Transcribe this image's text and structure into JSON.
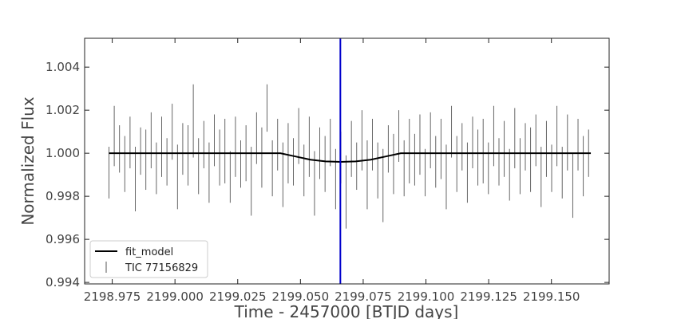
{
  "chart_data": {
    "type": "scatter",
    "title": "",
    "xlabel": "Time - 2457000 [BTJD days]",
    "ylabel": "Normalized Flux",
    "xlim": [
      2198.964,
      2199.173
    ],
    "ylim": [
      0.99393,
      1.00534
    ],
    "xticks": [
      2198.975,
      2199.0,
      2199.025,
      2199.05,
      2199.075,
      2199.1,
      2199.125,
      2199.15
    ],
    "xtick_labels": [
      "2198.975",
      "2199.000",
      "2199.025",
      "2199.050",
      "2199.075",
      "2199.100",
      "2199.125",
      "2199.150"
    ],
    "yticks": [
      0.994,
      0.996,
      0.998,
      1.0,
      1.002,
      1.004
    ],
    "ytick_labels": [
      "0.994",
      "0.996",
      "0.998",
      "1.000",
      "1.002",
      "1.004"
    ],
    "grid": false,
    "legend": {
      "placement": "lower-left",
      "entries": [
        {
          "label": "fit_model",
          "kind": "line",
          "color": "#000000"
        },
        {
          "label": "TIC 77156829",
          "kind": "errorbar",
          "color": "#555555"
        }
      ]
    },
    "vertical_marker": {
      "x": 2199.0659,
      "color": "#0000cc"
    },
    "model": {
      "name": "fit_model",
      "color": "#000000",
      "x": [
        2198.9737,
        2199.042,
        2199.048,
        2199.054,
        2199.06,
        2199.066,
        2199.072,
        2199.078,
        2199.084,
        2199.09,
        2199.1657
      ],
      "y": [
        1.0,
        1.0,
        0.99985,
        0.9997,
        0.99962,
        0.9996,
        0.99962,
        0.9997,
        0.99985,
        1.0,
        1.0
      ]
    },
    "series": [
      {
        "name": "TIC 77156829",
        "color": "#555555",
        "x": [
          2198.9737,
          2198.9758,
          2198.9779,
          2198.98,
          2198.9821,
          2198.9842,
          2198.9863,
          2198.9884,
          2198.9905,
          2198.9926,
          2198.9947,
          2198.9968,
          2198.9989,
          2199.001,
          2199.0031,
          2199.0052,
          2199.0073,
          2199.0094,
          2199.0115,
          2199.0136,
          2199.0157,
          2199.0178,
          2199.0199,
          2199.022,
          2199.0241,
          2199.0262,
          2199.0283,
          2199.0304,
          2199.0325,
          2199.0346,
          2199.0367,
          2199.0388,
          2199.0409,
          2199.043,
          2199.0451,
          2199.0472,
          2199.0493,
          2199.0514,
          2199.0535,
          2199.0556,
          2199.0577,
          2199.0598,
          2199.0619,
          2199.064,
          2199.0661,
          2199.0682,
          2199.0703,
          2199.0724,
          2199.0745,
          2199.0766,
          2199.0787,
          2199.0808,
          2199.0829,
          2199.085,
          2199.0871,
          2199.0892,
          2199.0913,
          2199.0934,
          2199.0955,
          2199.0976,
          2199.0997,
          2199.1018,
          2199.1039,
          2199.106,
          2199.1081,
          2199.1102,
          2199.1123,
          2199.1144,
          2199.1165,
          2199.1186,
          2199.1207,
          2199.1228,
          2199.1249,
          2199.127,
          2199.1291,
          2199.1312,
          2199.1333,
          2199.1354,
          2199.1375,
          2199.1396,
          2199.1417,
          2199.1438,
          2199.1459,
          2199.148,
          2199.1501,
          2199.1522,
          2199.1543,
          2199.1564,
          2199.1585,
          2199.1606,
          2199.1627,
          2199.1648
        ],
        "y": [
          0.9991,
          1.0008,
          1.0002,
          0.9995,
          1.0005,
          0.9988,
          1.0001,
          0.9997,
          1.0006,
          0.9993,
          1.0003,
          0.9996,
          1.001,
          0.9989,
          1.0002,
          0.9999,
          1.0015,
          0.9994,
          1.0004,
          0.9991,
          1.0006,
          0.9998,
          1.0001,
          0.9989,
          1.0003,
          0.9995,
          1.0,
          0.9987,
          1.0007,
          0.9998,
          1.0021,
          0.9993,
          1.0004,
          0.999,
          1.0,
          0.9996,
          1.0008,
          0.9992,
          1.0003,
          0.9986,
          1.0,
          0.9995,
          1.0005,
          0.9988,
          0.9998,
          0.9982,
          1.0002,
          0.9994,
          1.0006,
          0.999,
          1.0004,
          0.9992,
          0.9985,
          1.0002,
          0.9995,
          1.0008,
          0.9993,
          1.0001,
          0.9997,
          1.0004,
          0.9991,
          1.0006,
          0.9996,
          1.0002,
          0.9989,
          1.001,
          0.9995,
          1.0003,
          0.9991,
          1.0005,
          0.9998,
          1.0001,
          0.9993,
          1.0008,
          0.9996,
          1.0002,
          0.999,
          1.0007,
          0.9994,
          1.0003,
          0.9997,
          1.0006,
          0.9989,
          1.0002,
          0.9993,
          1.0008,
          0.9991,
          1.0005,
          0.9985,
          1.0004,
          0.9994,
          1.0
        ],
        "yerr": [
          0.0012,
          0.0014,
          0.0011,
          0.0013,
          0.0012,
          0.0015,
          0.0011,
          0.0014,
          0.0013,
          0.0012,
          0.0014,
          0.0011,
          0.0013,
          0.0015,
          0.0012,
          0.0014,
          0.0017,
          0.0013,
          0.0011,
          0.0014,
          0.0012,
          0.0013,
          0.0015,
          0.0012,
          0.0014,
          0.0011,
          0.0013,
          0.0016,
          0.0012,
          0.0014,
          0.0011,
          0.0013,
          0.0012,
          0.0015,
          0.0014,
          0.0011,
          0.0013,
          0.0012,
          0.0014,
          0.0015,
          0.0012,
          0.0013,
          0.0011,
          0.0014,
          0.0012,
          0.0017,
          0.0013,
          0.0011,
          0.0014,
          0.0016,
          0.0012,
          0.0013,
          0.0017,
          0.0011,
          0.0014,
          0.0012,
          0.0013,
          0.0015,
          0.0012,
          0.0014,
          0.0011,
          0.0013,
          0.0012,
          0.0014,
          0.0015,
          0.0012,
          0.0013,
          0.0011,
          0.0014,
          0.0012,
          0.0013,
          0.0015,
          0.0012,
          0.0014,
          0.0011,
          0.0013,
          0.0012,
          0.0014,
          0.0013,
          0.0011,
          0.0015,
          0.0012,
          0.0014,
          0.0013,
          0.0011,
          0.0014,
          0.0012,
          0.0013,
          0.0015,
          0.0012,
          0.0014,
          0.0011
        ]
      }
    ]
  }
}
